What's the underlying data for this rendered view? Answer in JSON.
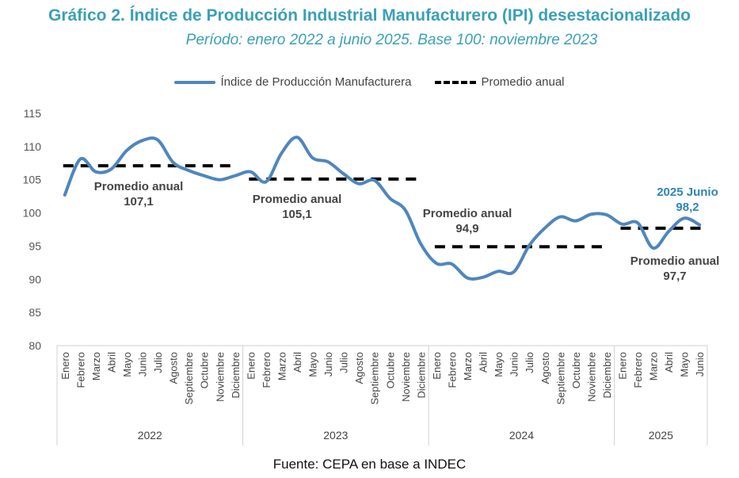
{
  "title": "Gráfico 2. Índice de Producción Industrial Manufacturero (IPI) desestacionalizado",
  "subtitle": "Período: enero 2022 a junio 2025. Base 100: noviembre 2023",
  "source": "Fuente: CEPA en base a INDEC",
  "colors": {
    "title": "#3aa0b8",
    "series": "#4f86bd",
    "average": "#000000",
    "highlight": "#2d86b8"
  },
  "chart_data": {
    "type": "line",
    "title": "Gráfico 2. Índice de Producción Industrial Manufacturero (IPI) desestacionalizado",
    "subtitle": "Período: enero 2022 a junio 2025. Base 100: noviembre 2023",
    "xlabel": "",
    "ylabel": "",
    "ylim": [
      80,
      115
    ],
    "yticks": [
      "80",
      "85",
      "90",
      "95",
      "100",
      "105",
      "110",
      "115"
    ],
    "grid": false,
    "legend_placement": "top",
    "legend": [
      "Índice de Producción Manufacturera",
      "Promedio anual"
    ],
    "groups": [
      {
        "year": "2022",
        "months": [
          "Enero",
          "Febrero",
          "Marzo",
          "Abril",
          "Mayo",
          "Junio",
          "Julio",
          "Agosto",
          "Septiembre",
          "Octubre",
          "Noviembre",
          "Diciembre"
        ]
      },
      {
        "year": "2023",
        "months": [
          "Enero",
          "Febrero",
          "Marzo",
          "Abril",
          "Mayo",
          "Junio",
          "Julio",
          "Agosto",
          "Septiembre",
          "Octubre",
          "Noviembre",
          "Diciembre"
        ]
      },
      {
        "year": "2024",
        "months": [
          "Enero",
          "Febrero",
          "Marzo",
          "Abril",
          "Mayo",
          "Junio",
          "Julio",
          "Agosto",
          "Septiembre",
          "Octubre",
          "Noviembre",
          "Diciembre"
        ]
      },
      {
        "year": "2025",
        "months": [
          "Enero",
          "Febrero",
          "Marzo",
          "Abril",
          "Mayo",
          "Junio"
        ]
      }
    ],
    "series": [
      {
        "name": "Índice de Producción Manufacturera",
        "values": [
          102.7,
          108.1,
          106.2,
          106.6,
          109.4,
          110.9,
          111.0,
          107.6,
          106.4,
          105.6,
          105.0,
          105.6,
          106.2,
          104.7,
          109.0,
          111.4,
          108.3,
          107.7,
          105.9,
          104.4,
          104.9,
          102.2,
          100.4,
          95.3,
          92.4,
          92.3,
          90.2,
          90.3,
          91.2,
          91.1,
          95.1,
          97.7,
          99.4,
          98.8,
          99.8,
          99.7,
          98.3,
          98.5,
          94.7,
          97.2,
          99.2,
          98.2
        ]
      }
    ],
    "averages": [
      {
        "year": "2022",
        "value": 107.1,
        "label": "Promedio anual",
        "value_label": "107,1"
      },
      {
        "year": "2023",
        "value": 105.1,
        "label": "Promedio anual",
        "value_label": "105,1"
      },
      {
        "year": "2024",
        "value": 94.9,
        "label": "Promedio anual",
        "value_label": "94,9"
      },
      {
        "year": "2025",
        "value": 97.7,
        "label": "Promedio anual",
        "value_label": "97,7"
      }
    ],
    "highlight": {
      "label": "2025 Junio",
      "value_label": "98,2"
    }
  }
}
